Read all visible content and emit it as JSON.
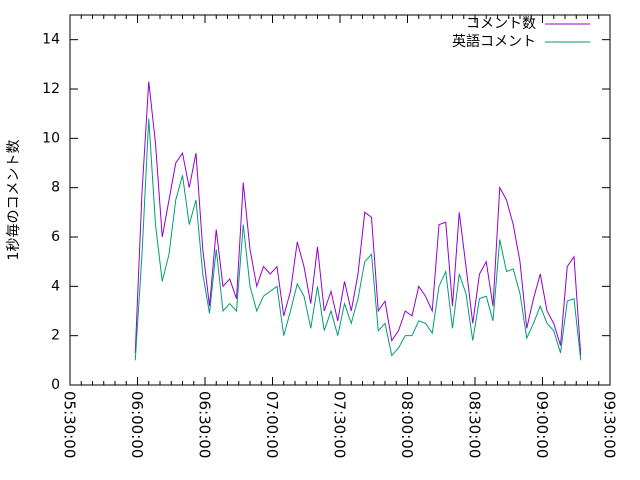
{
  "chart_data": {
    "type": "line",
    "ylabel": "1秒毎のコメント数",
    "x": [
      "05:59:00",
      "06:02:00",
      "06:05:00",
      "06:08:00",
      "06:11:00",
      "06:14:00",
      "06:17:00",
      "06:20:00",
      "06:23:00",
      "06:26:00",
      "06:29:00",
      "06:32:00",
      "06:35:00",
      "06:38:00",
      "06:41:00",
      "06:44:00",
      "06:47:00",
      "06:50:00",
      "06:53:00",
      "06:56:00",
      "06:59:00",
      "07:02:00",
      "07:05:00",
      "07:08:00",
      "07:11:00",
      "07:14:00",
      "07:17:00",
      "07:20:00",
      "07:23:00",
      "07:26:00",
      "07:29:00",
      "07:32:00",
      "07:35:00",
      "07:38:00",
      "07:41:00",
      "07:44:00",
      "07:47:00",
      "07:50:00",
      "07:53:00",
      "07:56:00",
      "07:59:00",
      "08:02:00",
      "08:05:00",
      "08:08:00",
      "08:11:00",
      "08:14:00",
      "08:17:00",
      "08:20:00",
      "08:23:00",
      "08:26:00",
      "08:29:00",
      "08:32:00",
      "08:35:00",
      "08:38:00",
      "08:41:00",
      "08:44:00",
      "08:47:00",
      "08:50:00",
      "08:53:00",
      "08:56:00",
      "08:59:00",
      "09:02:00",
      "09:05:00",
      "09:08:00",
      "09:11:00",
      "09:14:00",
      "09:17:00"
    ],
    "series": [
      {
        "name": "コメント数",
        "color": "#9400d3",
        "values": [
          1.3,
          7.8,
          12.3,
          9.8,
          6.0,
          7.5,
          9.0,
          9.4,
          8.0,
          9.4,
          5.5,
          3.2,
          6.3,
          4.0,
          4.3,
          3.5,
          8.2,
          5.5,
          4.0,
          4.8,
          4.5,
          4.8,
          2.8,
          3.8,
          5.8,
          4.8,
          3.3,
          5.6,
          3.0,
          3.8,
          2.6,
          4.2,
          3.0,
          4.5,
          7.0,
          6.8,
          3.0,
          3.4,
          1.8,
          2.2,
          3.0,
          2.8,
          4.0,
          3.6,
          3.0,
          6.5,
          6.6,
          3.2,
          7.0,
          4.8,
          2.5,
          4.5,
          5.0,
          3.2,
          8.0,
          7.5,
          6.5,
          5.0,
          2.3,
          3.5,
          4.5,
          3.0,
          2.5,
          1.6,
          4.8,
          5.2,
          1.2
        ]
      },
      {
        "name": "英語コメント",
        "color": "#009e73",
        "values": [
          1.0,
          5.3,
          10.8,
          6.5,
          4.2,
          5.3,
          7.5,
          8.5,
          6.5,
          7.5,
          4.5,
          2.9,
          5.5,
          3.0,
          3.3,
          3.0,
          6.5,
          4.0,
          3.0,
          3.6,
          3.8,
          4.0,
          2.0,
          3.0,
          4.1,
          3.6,
          2.3,
          4.0,
          2.2,
          3.0,
          2.0,
          3.3,
          2.5,
          3.5,
          5.0,
          5.3,
          2.2,
          2.5,
          1.2,
          1.5,
          2.0,
          2.0,
          2.6,
          2.5,
          2.1,
          4.0,
          4.6,
          2.3,
          4.5,
          3.7,
          1.8,
          3.5,
          3.6,
          2.6,
          5.9,
          4.6,
          4.7,
          3.7,
          1.9,
          2.5,
          3.2,
          2.5,
          2.2,
          1.3,
          3.4,
          3.5,
          1.0
        ]
      }
    ],
    "xlim": [
      "05:30:00",
      "09:30:00"
    ],
    "xticks": [
      "05:30:00",
      "06:00:00",
      "06:30:00",
      "07:00:00",
      "07:30:00",
      "08:00:00",
      "08:30:00",
      "09:00:00",
      "09:30:00"
    ],
    "ylim": [
      0,
      15
    ],
    "yticks": [
      0,
      2,
      4,
      6,
      8,
      10,
      12,
      14
    ],
    "legend": "top-right"
  }
}
